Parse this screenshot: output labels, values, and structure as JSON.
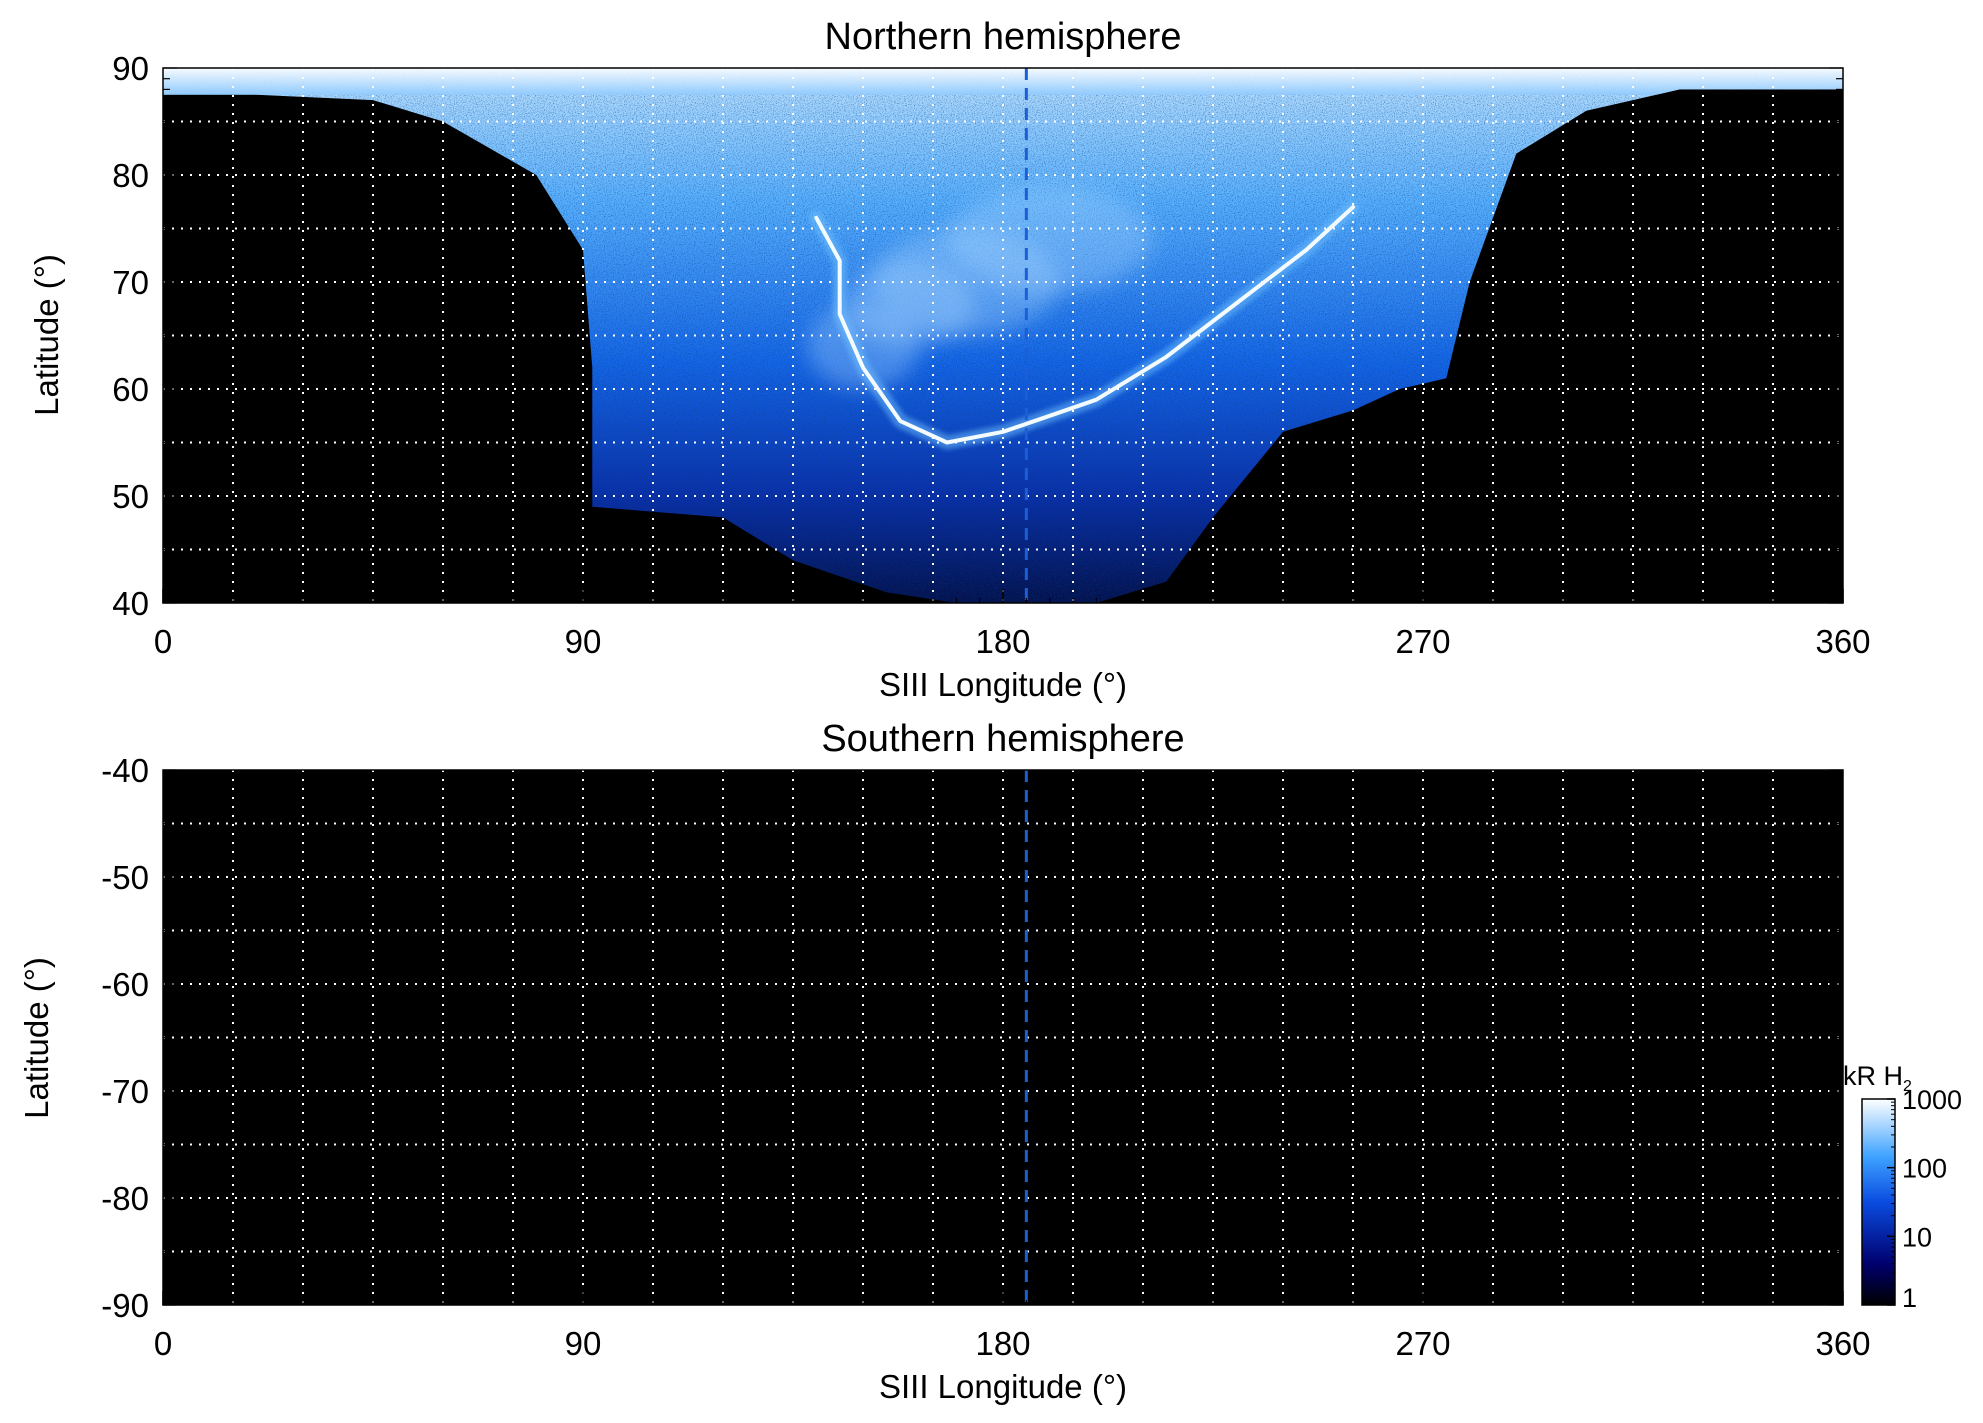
{
  "chart_data": [
    {
      "type": "heatmap",
      "title": "Northern hemisphere",
      "xlabel": "SIII Longitude (°)",
      "ylabel": "Latitude (°)",
      "xlim": [
        0,
        360
      ],
      "ylim": [
        40,
        90
      ],
      "x_ticks": [
        0,
        90,
        180,
        270,
        360
      ],
      "x_tick_labels": [
        "0",
        "90",
        "180",
        "270",
        "360"
      ],
      "y_ticks": [
        40,
        50,
        60,
        70,
        80,
        90
      ],
      "y_tick_labels": [
        "40",
        "50",
        "60",
        "70",
        "80",
        "90"
      ],
      "grid": true,
      "grid_x_step": 15,
      "grid_y_step": 5,
      "reference_line_longitude": 185,
      "observed_coverage_lower_latitude_boundary": [
        [
          0,
          87.5
        ],
        [
          20,
          87.5
        ],
        [
          45,
          87
        ],
        [
          60,
          85
        ],
        [
          80,
          80
        ],
        [
          90,
          73
        ],
        [
          92,
          62
        ],
        [
          92,
          49
        ],
        [
          120,
          48
        ],
        [
          135,
          44
        ],
        [
          155,
          41
        ],
        [
          170,
          40
        ],
        [
          200,
          40
        ],
        [
          215,
          42
        ],
        [
          225,
          48
        ],
        [
          240,
          56
        ],
        [
          255,
          58
        ],
        [
          265,
          60
        ],
        [
          275,
          61
        ],
        [
          280,
          70
        ],
        [
          290,
          82
        ],
        [
          305,
          86
        ],
        [
          325,
          88
        ],
        [
          360,
          88
        ]
      ],
      "main_auroral_emission": [
        [
          140,
          76
        ],
        [
          145,
          72
        ],
        [
          145,
          67
        ],
        [
          150,
          62
        ],
        [
          158,
          57
        ],
        [
          168,
          55
        ],
        [
          180,
          56
        ],
        [
          190,
          57.5
        ],
        [
          200,
          59
        ],
        [
          215,
          63
        ],
        [
          230,
          68
        ],
        [
          245,
          73
        ],
        [
          255,
          77
        ]
      ],
      "emission_kR": {
        "background": 10,
        "polar_region": 300,
        "main_oval": 1000
      }
    },
    {
      "type": "heatmap",
      "title": "Southern hemisphere",
      "xlabel": "SIII Longitude (°)",
      "ylabel": "Latitude (°)",
      "xlim": [
        0,
        360
      ],
      "ylim": [
        -90,
        -40
      ],
      "x_ticks": [
        0,
        90,
        180,
        270,
        360
      ],
      "x_tick_labels": [
        "0",
        "90",
        "180",
        "270",
        "360"
      ],
      "y_ticks": [
        -90,
        -80,
        -70,
        -60,
        -50,
        -40
      ],
      "y_tick_labels": [
        "-90",
        "-80",
        "-70",
        "-60",
        "-50",
        "-40"
      ],
      "grid": true,
      "grid_x_step": 15,
      "grid_y_step": 5,
      "reference_line_longitude": 185,
      "observed_coverage": "none"
    }
  ],
  "colorbar": {
    "label_main": "kR H",
    "label_sub": "2",
    "scale": "log",
    "range": [
      1,
      1000
    ],
    "ticks": [
      1,
      10,
      100,
      1000
    ],
    "tick_labels": [
      "1",
      "10",
      "100",
      "1000"
    ],
    "colors": [
      "#000000",
      "#00006e",
      "#0a4ce0",
      "#3ea2ff",
      "#ffffff"
    ]
  },
  "colors": {
    "background_no_data": "#000000",
    "reference_line": "#1b5ed6",
    "grid": "#ffffff"
  }
}
